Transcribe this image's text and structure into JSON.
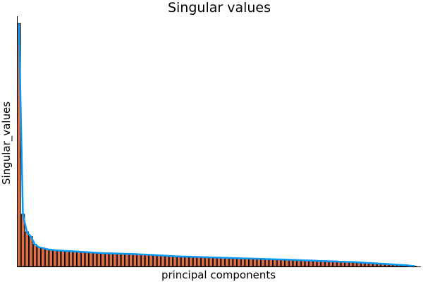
{
  "chart_data": {
    "type": "bar",
    "title": "Singular values",
    "xlabel": "principal components",
    "ylabel": "Singular_values",
    "x": [
      1,
      2,
      3,
      4,
      5,
      6,
      7,
      8,
      9,
      10,
      11,
      12,
      13,
      14,
      15,
      16,
      17,
      18,
      19,
      20,
      21,
      22,
      23,
      24,
      25,
      26,
      27,
      28,
      29,
      30,
      31,
      32,
      33,
      34,
      35,
      36,
      37,
      38,
      39,
      40,
      41,
      42,
      43,
      44,
      45,
      46,
      47,
      48,
      49,
      50,
      51,
      52,
      53,
      54,
      55,
      56,
      57,
      58,
      59,
      60,
      61,
      62,
      63,
      64,
      65,
      66,
      67,
      68,
      69,
      70,
      71,
      72,
      73,
      74,
      75,
      76,
      77,
      78,
      79,
      80,
      81,
      82,
      83,
      84,
      85,
      86,
      87,
      88,
      89,
      90,
      91,
      92,
      93,
      94,
      95,
      96,
      97,
      98,
      99,
      100
    ],
    "series": [
      {
        "values": [
          100.0,
          21.5,
          14.2,
          12.3,
          9.1,
          7.9,
          7.6,
          7.1,
          6.9,
          6.7,
          6.6,
          6.5,
          6.4,
          6.3,
          6.2,
          6.1,
          6.0,
          5.9,
          5.8,
          5.7,
          5.6,
          5.5,
          5.45,
          5.4,
          5.35,
          5.3,
          5.25,
          5.2,
          5.15,
          5.1,
          5.0,
          4.95,
          4.9,
          4.8,
          4.7,
          4.6,
          4.5,
          4.4,
          4.3,
          4.2,
          4.15,
          4.1,
          4.05,
          4.0,
          3.95,
          3.9,
          3.85,
          3.8,
          3.75,
          3.7,
          3.65,
          3.6,
          3.55,
          3.5,
          3.45,
          3.4,
          3.35,
          3.3,
          3.25,
          3.2,
          3.15,
          3.1,
          3.05,
          3.0,
          2.95,
          2.9,
          2.85,
          2.8,
          2.75,
          2.7,
          2.6,
          2.55,
          2.5,
          2.45,
          2.4,
          2.3,
          2.25,
          2.2,
          2.15,
          2.1,
          2.0,
          1.95,
          1.9,
          1.85,
          1.8,
          1.7,
          1.6,
          1.5,
          1.4,
          1.3,
          1.2,
          1.1,
          1.0,
          0.9,
          0.8,
          0.7,
          0.6,
          0.5,
          0.3,
          0.1
        ]
      }
    ],
    "ylim": [
      0,
      103
    ],
    "xlim": [
      0.5,
      101.5
    ],
    "grid": false,
    "legend": "none",
    "colors": {
      "bar_fill": "#e26f46",
      "bar_edge": "#000000",
      "line": "#009af9",
      "axis": "#000000"
    }
  }
}
